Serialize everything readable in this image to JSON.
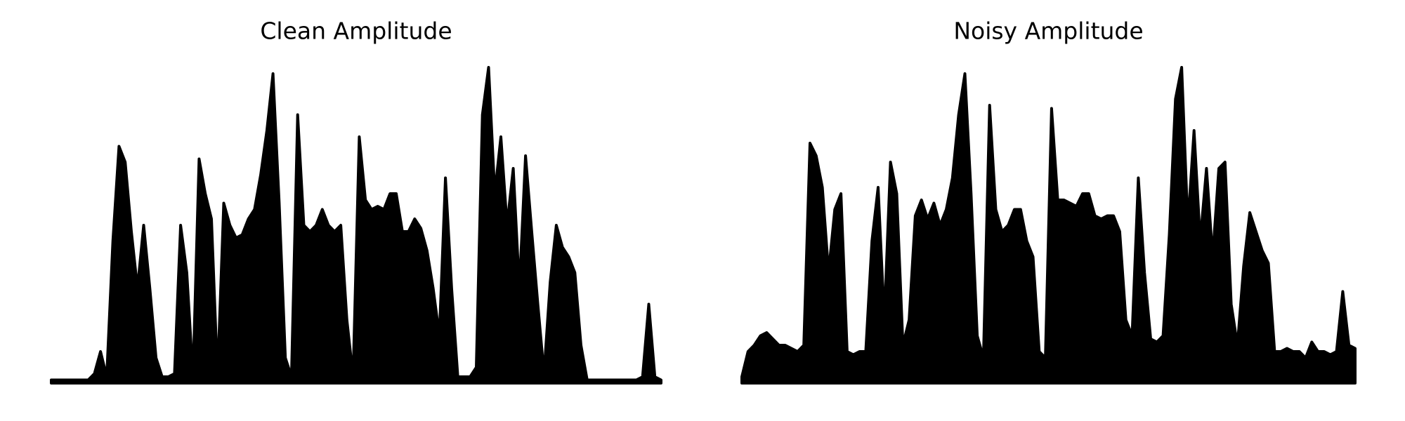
{
  "chart_data": [
    {
      "type": "area",
      "title": "Clean Amplitude",
      "color": "#000000",
      "ylim": [
        0,
        1
      ],
      "values": [
        0.01,
        0.01,
        0.01,
        0.01,
        0.01,
        0.01,
        0.01,
        0.03,
        0.1,
        0.02,
        0.45,
        0.75,
        0.7,
        0.48,
        0.3,
        0.5,
        0.3,
        0.08,
        0.02,
        0.02,
        0.03,
        0.5,
        0.35,
        0.02,
        0.71,
        0.6,
        0.52,
        0.02,
        0.57,
        0.5,
        0.46,
        0.47,
        0.52,
        0.55,
        0.66,
        0.8,
        0.98,
        0.57,
        0.08,
        0.02,
        0.85,
        0.5,
        0.48,
        0.5,
        0.55,
        0.5,
        0.48,
        0.5,
        0.2,
        0.02,
        0.78,
        0.58,
        0.55,
        0.56,
        0.55,
        0.6,
        0.6,
        0.48,
        0.48,
        0.52,
        0.49,
        0.42,
        0.3,
        0.15,
        0.65,
        0.3,
        0.02,
        0.02,
        0.02,
        0.05,
        0.85,
        1.0,
        0.6,
        0.78,
        0.5,
        0.68,
        0.3,
        0.72,
        0.48,
        0.25,
        0.03,
        0.32,
        0.5,
        0.43,
        0.4,
        0.35,
        0.12,
        0.01,
        0.01,
        0.01,
        0.01,
        0.01,
        0.01,
        0.01,
        0.01,
        0.01,
        0.02,
        0.25,
        0.02,
        0.01
      ]
    },
    {
      "type": "area",
      "title": "Noisy Amplitude",
      "color": "#000000",
      "ylim": [
        0,
        1
      ],
      "values": [
        0.02,
        0.1,
        0.12,
        0.15,
        0.16,
        0.14,
        0.12,
        0.12,
        0.11,
        0.1,
        0.12,
        0.76,
        0.72,
        0.62,
        0.35,
        0.55,
        0.6,
        0.1,
        0.09,
        0.1,
        0.1,
        0.45,
        0.62,
        0.2,
        0.7,
        0.6,
        0.12,
        0.2,
        0.53,
        0.58,
        0.52,
        0.57,
        0.5,
        0.55,
        0.65,
        0.85,
        0.98,
        0.6,
        0.15,
        0.08,
        0.88,
        0.55,
        0.48,
        0.5,
        0.55,
        0.55,
        0.45,
        0.4,
        0.1,
        0.08,
        0.87,
        0.58,
        0.58,
        0.57,
        0.56,
        0.6,
        0.6,
        0.53,
        0.52,
        0.53,
        0.53,
        0.48,
        0.2,
        0.15,
        0.65,
        0.35,
        0.14,
        0.13,
        0.15,
        0.47,
        0.9,
        1.0,
        0.5,
        0.8,
        0.45,
        0.68,
        0.4,
        0.68,
        0.7,
        0.25,
        0.12,
        0.37,
        0.54,
        0.48,
        0.42,
        0.38,
        0.1,
        0.1,
        0.11,
        0.1,
        0.1,
        0.08,
        0.13,
        0.1,
        0.1,
        0.09,
        0.1,
        0.29,
        0.12,
        0.11
      ]
    }
  ]
}
